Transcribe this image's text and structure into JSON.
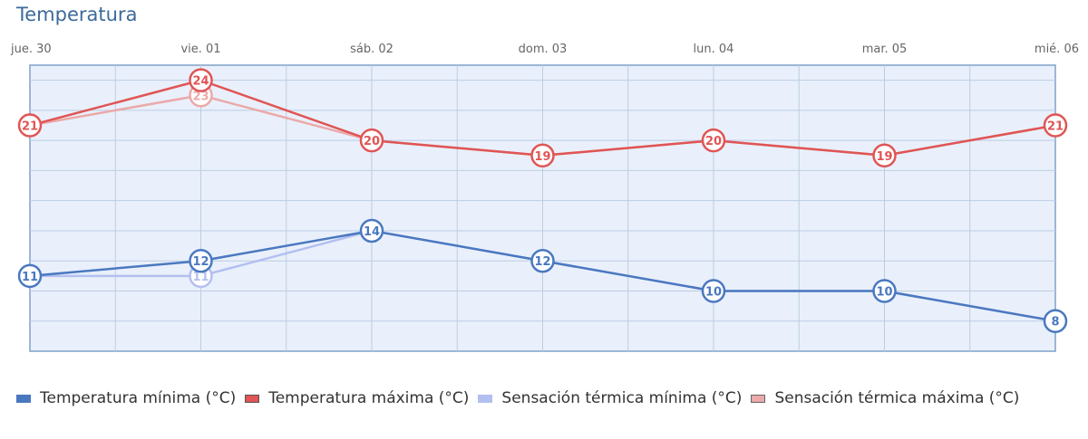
{
  "title": "Temperatura",
  "chart_data": {
    "type": "line",
    "categories": [
      "jue. 30",
      "vie. 01",
      "sáb. 02",
      "dom. 03",
      "lun. 04",
      "mar. 05",
      "mié. 06"
    ],
    "ylim": [
      6,
      25
    ],
    "grid": true,
    "legend_position": "bottom",
    "series": [
      {
        "key": "min",
        "name": "Temperatura mínima (°C)",
        "values": [
          11,
          12,
          14,
          12,
          10,
          10,
          8
        ],
        "color": "#4a78c0",
        "labeled": [
          true,
          true,
          true,
          true,
          true,
          true,
          true
        ]
      },
      {
        "key": "max",
        "name": "Temperatura máxima (°C)",
        "values": [
          21,
          24,
          20,
          19,
          20,
          19,
          21
        ],
        "color": "#e05555",
        "labeled": [
          true,
          true,
          true,
          true,
          true,
          true,
          true
        ]
      },
      {
        "key": "feel_min",
        "name": "Sensación térmica mínima (°C)",
        "values": [
          11,
          11,
          14,
          12,
          10,
          10,
          8
        ],
        "color": "#b3bff0",
        "labeled": [
          false,
          true,
          false,
          false,
          false,
          false,
          false
        ]
      },
      {
        "key": "feel_max",
        "name": "Sensación térmica máxima (°C)",
        "values": [
          21,
          23,
          20,
          19,
          20,
          19,
          21
        ],
        "color": "#eba9a9",
        "labeled": [
          false,
          true,
          false,
          false,
          false,
          false,
          false
        ]
      }
    ]
  }
}
